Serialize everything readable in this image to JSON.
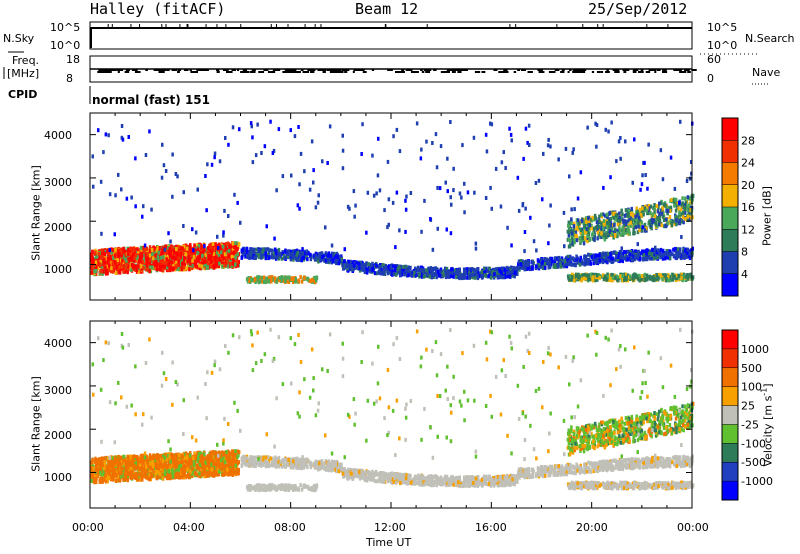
{
  "header": {
    "station": "Halley (fitACF)",
    "beam": "Beam 12",
    "date": "25/Sep/2012"
  },
  "nsky_panel": {
    "left_label": "N.Sky",
    "right_label": "N.Search",
    "tick_labels": [
      "10^5",
      "10^0"
    ]
  },
  "freq_panel": {
    "left_label_1": "Freq.",
    "left_label_2": "[MHz]",
    "left_ticks": [
      "18",
      "8"
    ],
    "right_ticks": [
      "60",
      "0"
    ],
    "right_label": "Nave"
  },
  "cpid": {
    "label": "CPID",
    "value": "normal (fast) 151"
  },
  "colors": {
    "power_scale": [
      "#0000ff",
      "#1f3fb0",
      "#2e7b5a",
      "#4aa85a",
      "#f3b000",
      "#f57a00",
      "#f03000",
      "#ff0000"
    ],
    "velocity_scale": [
      "#0000ff",
      "#2040c0",
      "#2e7b5a",
      "#60c030",
      "#c0c0b8",
      "#f7a000",
      "#f07000",
      "#f03000",
      "#ff0000"
    ],
    "ground_scatter": "#c0c0b8"
  },
  "chart_data": [
    {
      "type": "heatmap",
      "title": "",
      "xlabel": "",
      "ylabel": "Slant Range [km]",
      "xlim": [
        0,
        24
      ],
      "ylim": [
        180,
        4500
      ],
      "yticks": [
        "1000",
        "2000",
        "3000",
        "4000"
      ],
      "colorbar": {
        "label": "Power [dB]",
        "ticks": [
          "4",
          "8",
          "12",
          "16",
          "20",
          "24",
          "28"
        ],
        "range": [
          0,
          32
        ]
      },
      "echo_regions": [
        {
          "x": [
            0.0,
            6.0
          ],
          "range_km": [
            700,
            1400
          ],
          "value_db": [
            16,
            30
          ]
        },
        {
          "x": [
            6.0,
            24.0
          ],
          "range_km": [
            700,
            1600
          ],
          "value_db": [
            3,
            8
          ]
        },
        {
          "x": [
            19.0,
            24.0
          ],
          "range_km": [
            1300,
            2500
          ],
          "value_db": [
            8,
            20
          ]
        }
      ]
    },
    {
      "type": "heatmap",
      "title": "",
      "xlabel": "Time UT",
      "ylabel": "Slant Range [km]",
      "xlim": [
        0,
        24
      ],
      "ylim": [
        180,
        4500
      ],
      "xticks": [
        "00:00",
        "04:00",
        "08:00",
        "12:00",
        "16:00",
        "20:00",
        "00:00"
      ],
      "yticks": [
        "1000",
        "2000",
        "3000",
        "4000"
      ],
      "colorbar": {
        "label": "Velocity [m s",
        "label_exponent": "-1",
        "label_close": "]",
        "ticks": [
          "1000",
          "500",
          "100",
          "25",
          "-25",
          "-100",
          "-500",
          "-1000"
        ]
      },
      "echo_regions": [
        {
          "x": [
            0.0,
            6.0
          ],
          "range_km": [
            700,
            1400
          ],
          "velocity": [
            -500,
            100
          ]
        },
        {
          "x": [
            6.0,
            24.0
          ],
          "range_km": [
            700,
            1600
          ],
          "velocity": [
            -25,
            25
          ]
        },
        {
          "x": [
            19.0,
            24.0
          ],
          "range_km": [
            1300,
            2500
          ],
          "velocity": [
            -500,
            500
          ]
        }
      ]
    }
  ]
}
